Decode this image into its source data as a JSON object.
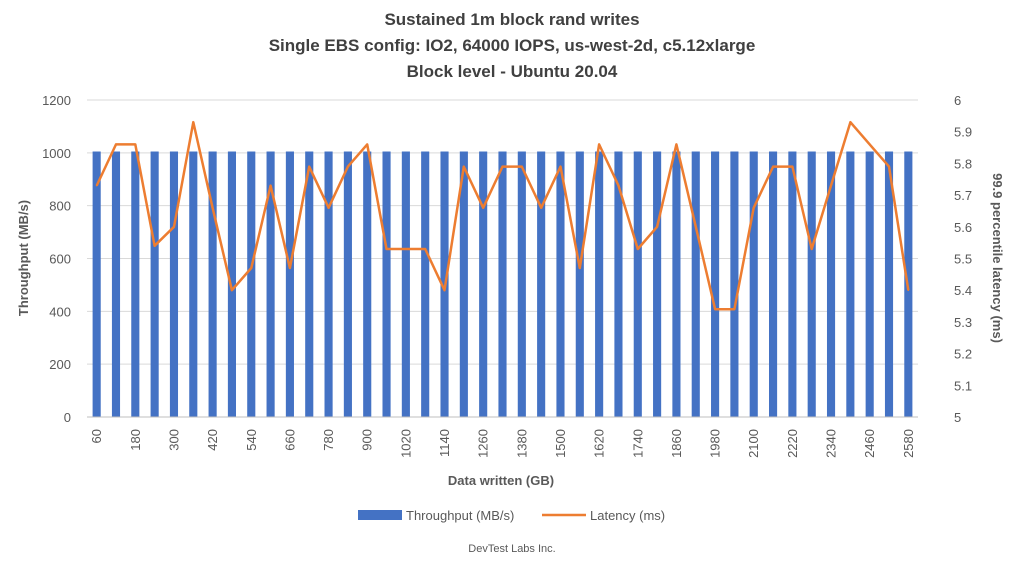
{
  "chart_data": {
    "type": "bar",
    "title_lines": [
      "Sustained 1m block rand writes",
      "Single EBS config: IO2, 64000 IOPS, us-west-2d, c5.12xlarge",
      "Block level - Ubuntu 20.04"
    ],
    "xlabel": "Data written (GB)",
    "ylabel": "Throughput (MB/s)",
    "y2label": "99.9 percentile latency (ms)",
    "ylim": [
      0,
      1200
    ],
    "y_ticks": [
      0,
      200,
      400,
      600,
      800,
      1000,
      1200
    ],
    "y2lim": [
      5,
      6
    ],
    "y2_ticks": [
      "5",
      "5.1",
      "5.2",
      "5.3",
      "5.4",
      "5.5",
      "5.6",
      "5.7",
      "5.8",
      "5.9",
      "6"
    ],
    "x_tick_labels": [
      "60",
      "180",
      "300",
      "420",
      "540",
      "660",
      "780",
      "900",
      "1020",
      "1140",
      "1260",
      "1380",
      "1500",
      "1620",
      "1740",
      "1860",
      "1980",
      "2100",
      "2220",
      "2340",
      "2460",
      "2580"
    ],
    "categories": [
      60,
      120,
      180,
      240,
      300,
      360,
      420,
      480,
      540,
      600,
      660,
      720,
      780,
      840,
      900,
      960,
      1020,
      1080,
      1140,
      1200,
      1260,
      1320,
      1380,
      1440,
      1500,
      1560,
      1620,
      1680,
      1740,
      1800,
      1860,
      1920,
      1980,
      2040,
      2100,
      2160,
      2220,
      2280,
      2340,
      2400,
      2460,
      2520,
      2580
    ],
    "series": [
      {
        "name": "Throughput (MB/s)",
        "type": "bar",
        "axis": "left",
        "color": "#4472C4",
        "values": [
          1005,
          1005,
          1005,
          1005,
          1005,
          1005,
          1005,
          1005,
          1005,
          1005,
          1005,
          1005,
          1005,
          1005,
          1005,
          1005,
          1005,
          1005,
          1005,
          1005,
          1005,
          1005,
          1005,
          1005,
          1005,
          1005,
          1005,
          1005,
          1005,
          1005,
          1005,
          1005,
          1005,
          1005,
          1005,
          1005,
          1005,
          1005,
          1005,
          1005,
          1005,
          1005,
          1005
        ]
      },
      {
        "name": "Latency (ms)",
        "type": "line",
        "axis": "right",
        "color": "#ED7D31",
        "values": [
          5.73,
          5.86,
          5.86,
          5.54,
          5.6,
          5.93,
          5.66,
          5.4,
          5.47,
          5.73,
          5.47,
          5.79,
          5.66,
          5.79,
          5.86,
          5.53,
          5.53,
          5.53,
          5.4,
          5.79,
          5.66,
          5.79,
          5.79,
          5.66,
          5.79,
          5.47,
          5.86,
          5.73,
          5.53,
          5.6,
          5.86,
          5.6,
          5.34,
          5.34,
          5.66,
          5.79,
          5.79,
          5.53,
          5.73,
          5.93,
          5.86,
          5.79,
          5.4
        ]
      }
    ],
    "grid": true,
    "legend_position": "bottom"
  },
  "footer": "DevTest Labs Inc."
}
